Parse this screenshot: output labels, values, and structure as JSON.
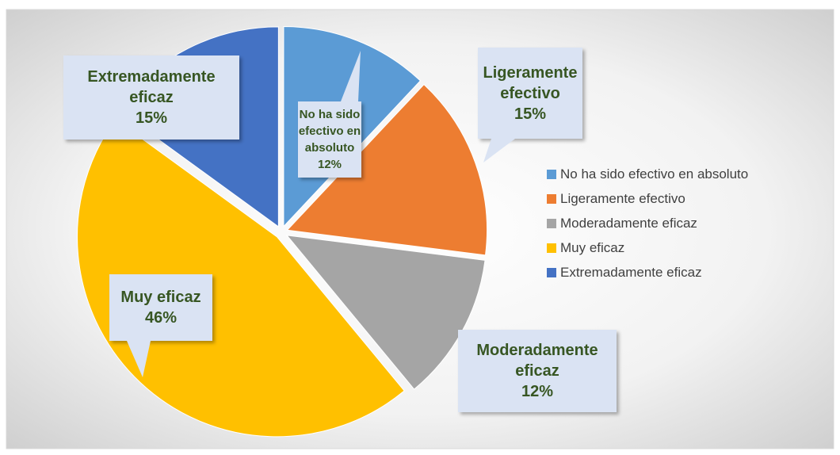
{
  "chart_data": {
    "type": "pie",
    "categories": [
      "No ha sido efectivo en absoluto",
      "Ligeramente efectivo",
      "Moderadamente eficaz",
      "Muy eficaz",
      "Extremadamente eficaz"
    ],
    "values": [
      12,
      15,
      12,
      46,
      15
    ],
    "value_labels": [
      "12%",
      "15%",
      "12%",
      "46%",
      "15%"
    ],
    "colors": [
      "#5b9bd5",
      "#ed7d31",
      "#a5a5a5",
      "#ffc000",
      "#4472c4"
    ],
    "legend": "right"
  }
}
